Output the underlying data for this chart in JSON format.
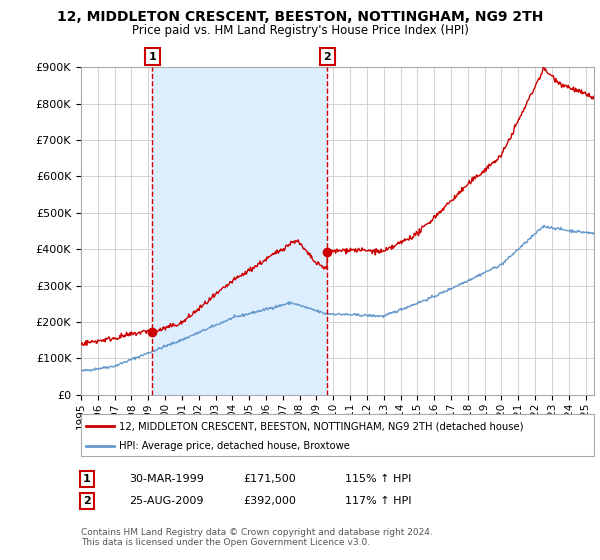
{
  "title": "12, MIDDLETON CRESCENT, BEESTON, NOTTINGHAM, NG9 2TH",
  "subtitle": "Price paid vs. HM Land Registry's House Price Index (HPI)",
  "legend_line1": "12, MIDDLETON CRESCENT, BEESTON, NOTTINGHAM, NG9 2TH (detached house)",
  "legend_line2": "HPI: Average price, detached house, Broxtowe",
  "annotation1_date": "30-MAR-1999",
  "annotation1_price": "£171,500",
  "annotation1_hpi": "115% ↑ HPI",
  "annotation2_date": "25-AUG-2009",
  "annotation2_price": "£392,000",
  "annotation2_hpi": "117% ↑ HPI",
  "footer": "Contains HM Land Registry data © Crown copyright and database right 2024.\nThis data is licensed under the Open Government Licence v3.0.",
  "red_color": "#cc0000",
  "blue_color": "#6699cc",
  "shade_color": "#ddeeff",
  "background_color": "#ffffff",
  "ylim": [
    0,
    900000
  ],
  "yticks": [
    0,
    100000,
    200000,
    300000,
    400000,
    500000,
    600000,
    700000,
    800000,
    900000
  ],
  "sale1_x": 1999.24,
  "sale1_y": 171500,
  "sale2_x": 2009.65,
  "sale2_y": 392000,
  "xlim_left": 1995.0,
  "xlim_right": 2025.5
}
